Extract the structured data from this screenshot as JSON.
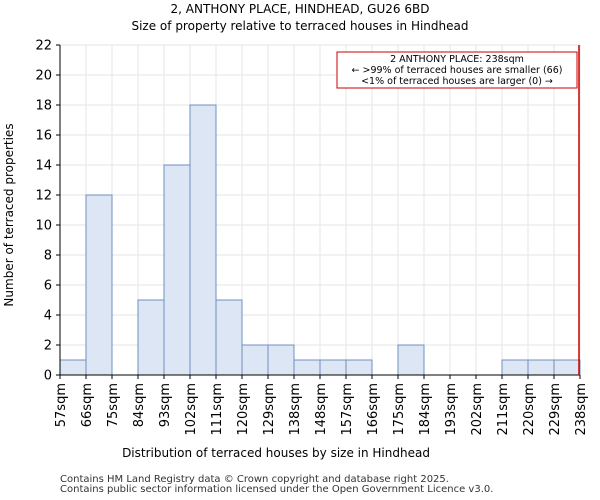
{
  "header": {
    "title": "2, ANTHONY PLACE, HINDHEAD, GU26 6BD",
    "subtitle": "Size of property relative to terraced houses in Hindhead"
  },
  "chart_data": {
    "type": "bar",
    "xlabel": "Distribution of terraced houses by size in Hindhead",
    "ylabel": "Number of terraced properties",
    "ylim": [
      0,
      22
    ],
    "yticks": [
      0,
      2,
      4,
      6,
      8,
      10,
      12,
      14,
      16,
      18,
      20,
      22
    ],
    "bin_edges": [
      "57sqm",
      "66sqm",
      "75sqm",
      "84sqm",
      "93sqm",
      "102sqm",
      "111sqm",
      "120sqm",
      "129sqm",
      "138sqm",
      "148sqm",
      "157sqm",
      "166sqm",
      "175sqm",
      "184sqm",
      "193sqm",
      "202sqm",
      "211sqm",
      "220sqm",
      "229sqm",
      "238sqm"
    ],
    "values": [
      1,
      12,
      0,
      5,
      14,
      18,
      5,
      2,
      2,
      1,
      1,
      1,
      0,
      2,
      0,
      0,
      0,
      1,
      1,
      1
    ],
    "bar_color": "#dce6f4",
    "bar_edge_color": "#6f8fbf",
    "marker": {
      "bin_edge_index": 20,
      "color": "#cc0000"
    },
    "annotation": {
      "line1": "2 ANTHONY PLACE: 238sqm",
      "line2": "← >99% of terraced houses are smaller (66)",
      "line3": "<1% of terraced houses are larger (0) →",
      "border_color": "#cc0000"
    }
  },
  "footer": {
    "line1": "Contains HM Land Registry data © Crown copyright and database right 2025.",
    "line2": "Contains public sector information licensed under the Open Government Licence v3.0."
  }
}
